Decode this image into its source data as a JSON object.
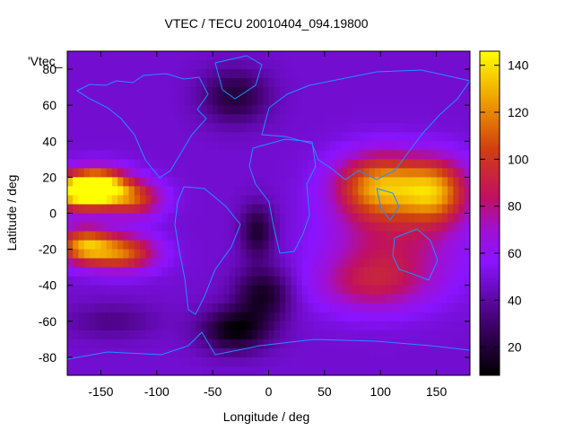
{
  "chart_data": {
    "type": "heatmap",
    "title": "VTEC / TECU 20010404_094.19800",
    "xlabel": "Longitude / deg",
    "ylabel": "Latitude / deg",
    "key_label": "'Vtec_",
    "xlim": [
      -180,
      180
    ],
    "ylim": [
      -90,
      90
    ],
    "x_ticks": [
      "-150",
      "-100",
      "-50",
      "0",
      "50",
      "100",
      "150"
    ],
    "x_tick_values": [
      -150,
      -100,
      -50,
      0,
      50,
      100,
      150
    ],
    "y_ticks": [
      "80",
      "60",
      "40",
      "20",
      "0",
      "-20",
      "-40",
      "-60",
      "-80"
    ],
    "y_tick_values": [
      80,
      60,
      40,
      20,
      0,
      -20,
      -40,
      -60,
      -80
    ],
    "colorbar": {
      "range": [
        8,
        146
      ],
      "ticks": [
        "140",
        "120",
        "100",
        "80",
        "60",
        "40",
        "20"
      ],
      "tick_values": [
        140,
        120,
        100,
        80,
        60,
        40,
        20
      ],
      "palette": "black-purple-red-orange-yellow"
    },
    "grid": false,
    "coastline_color": "#1e90ff",
    "features": [
      {
        "lon": -170,
        "lat": 12,
        "value": 140,
        "lon_width": 30,
        "lat_width": 10
      },
      {
        "lon": -150,
        "lat": 15,
        "value": 120,
        "lon_width": 25,
        "lat_width": 10
      },
      {
        "lon": -120,
        "lat": 8,
        "value": 100,
        "lon_width": 25,
        "lat_width": 10
      },
      {
        "lon": -165,
        "lat": -18,
        "value": 120,
        "lon_width": 25,
        "lat_width": 10
      },
      {
        "lon": -130,
        "lat": -22,
        "value": 110,
        "lon_width": 30,
        "lat_width": 10
      },
      {
        "lon": 100,
        "lat": 15,
        "value": 125,
        "lon_width": 40,
        "lat_width": 18
      },
      {
        "lon": 150,
        "lat": 12,
        "value": 115,
        "lon_width": 30,
        "lat_width": 18
      },
      {
        "lon": 110,
        "lat": -20,
        "value": 80,
        "lon_width": 60,
        "lat_width": 25
      },
      {
        "lon": 90,
        "lat": -40,
        "value": 75,
        "lon_width": 50,
        "lat_width": 15
      },
      {
        "lon": -30,
        "lat": -65,
        "value": 10,
        "lon_width": 30,
        "lat_width": 12
      },
      {
        "lon": -5,
        "lat": -45,
        "value": 15,
        "lon_width": 25,
        "lat_width": 15
      },
      {
        "lon": -10,
        "lat": -10,
        "value": 18,
        "lon_width": 15,
        "lat_width": 15
      },
      {
        "lon": -30,
        "lat": 65,
        "value": 20,
        "lon_width": 30,
        "lat_width": 15
      },
      {
        "lon": -140,
        "lat": -60,
        "value": 35,
        "lon_width": 40,
        "lat_width": 10
      }
    ]
  }
}
